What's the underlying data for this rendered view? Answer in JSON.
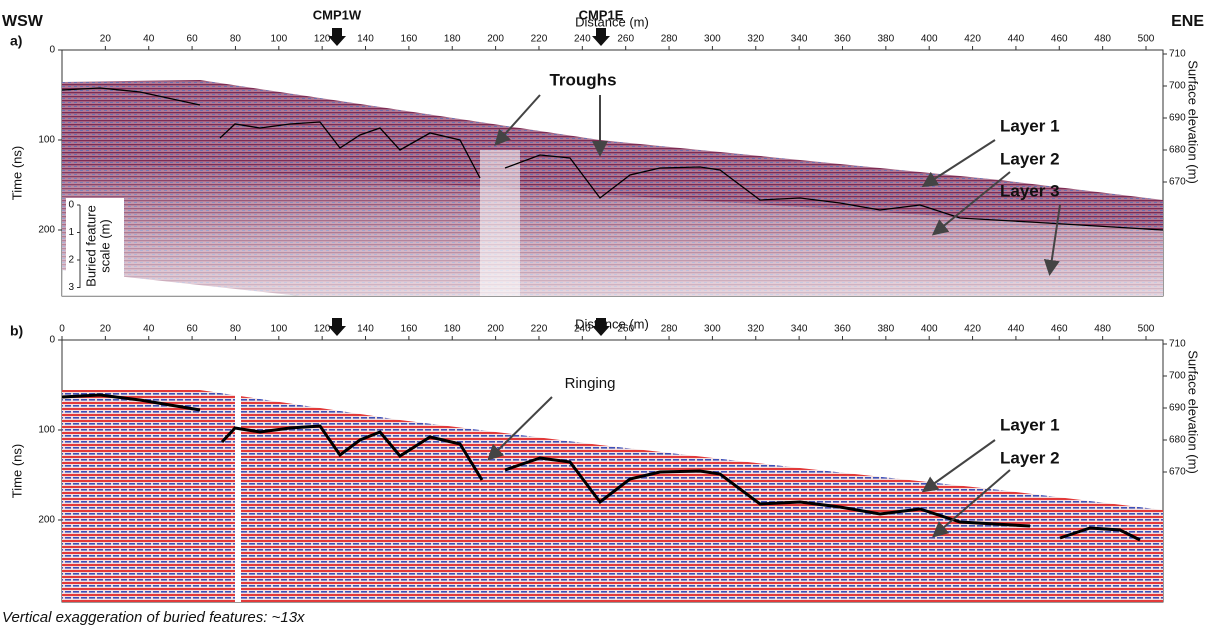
{
  "header": {
    "left": "WSW",
    "right": "ENE"
  },
  "markers": [
    "CMP1W",
    "CMP1E"
  ],
  "panels": [
    {
      "label": "a)",
      "x_label": "Distance (m)",
      "x_ticks": [
        20,
        40,
        60,
        80,
        100,
        120,
        140,
        160,
        180,
        200,
        220,
        240,
        260,
        280,
        300,
        320,
        340,
        360,
        380,
        400,
        420,
        440,
        460,
        480,
        500
      ],
      "y_label": "Time (ns)",
      "y_ticks": [
        0,
        100,
        200
      ],
      "y2_label": "Surface elevation (m)",
      "y2_ticks": [
        710,
        700,
        690,
        680,
        670
      ],
      "annotations": [
        "Troughs",
        "Layer 1",
        "Layer 2",
        "Layer 3"
      ],
      "scale": {
        "label": [
          "Buried feature",
          "scale (m)"
        ],
        "ticks": [
          0,
          1,
          2,
          3
        ]
      }
    },
    {
      "label": "b)",
      "x_label": "Distance (m)",
      "x_ticks": [
        0,
        20,
        40,
        60,
        80,
        100,
        120,
        140,
        160,
        180,
        200,
        220,
        240,
        260,
        280,
        300,
        320,
        340,
        360,
        380,
        400,
        420,
        440,
        460,
        480,
        500
      ],
      "y_label": "Time (ns)",
      "y_ticks": [
        0,
        100,
        200
      ],
      "y2_label": "Surface elevation (m)",
      "y2_ticks": [
        710,
        700,
        690,
        680,
        670
      ],
      "annotations": [
        "Ringing",
        "Layer 1",
        "Layer 2"
      ]
    }
  ],
  "caption": "Vertical exaggeration of buried features: ~13x"
}
